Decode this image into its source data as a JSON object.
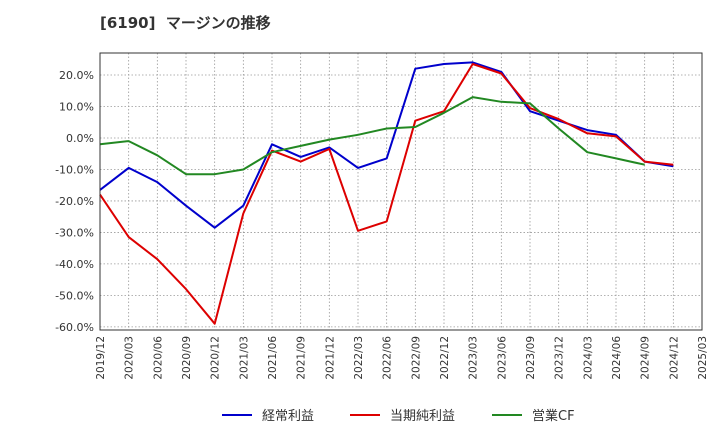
{
  "chart_data": {
    "type": "line",
    "title": "[6190]  マージンの推移",
    "xlabel": "",
    "ylabel": "",
    "ylim": [
      -61,
      27
    ],
    "yticks": [
      20,
      10,
      0,
      -10,
      -20,
      -30,
      -40,
      -50,
      -60
    ],
    "ytick_labels": [
      "20.0%",
      "10.0%",
      "0.0%",
      "-10.0%",
      "-20.0%",
      "-30.0%",
      "-40.0%",
      "-50.0%",
      "-60.0%"
    ],
    "x": [
      "2019/12",
      "2020/03",
      "2020/06",
      "2020/09",
      "2020/12",
      "2021/03",
      "2021/06",
      "2021/09",
      "2021/12",
      "2022/03",
      "2022/06",
      "2022/09",
      "2022/12",
      "2023/03",
      "2023/06",
      "2023/09",
      "2023/12",
      "2024/03",
      "2024/06",
      "2024/09",
      "2024/12",
      "2025/03"
    ],
    "grid": true,
    "legend_position": "bottom",
    "series": [
      {
        "name": "経常利益",
        "color": "#0000cc",
        "values": [
          -16.5,
          -9.5,
          -14,
          -21.5,
          -28.5,
          -21.5,
          -2,
          -6,
          -3,
          -9.5,
          -6.5,
          22,
          23.5,
          24,
          21,
          8.5,
          5.5,
          2.5,
          1,
          -7.5,
          -9,
          null
        ]
      },
      {
        "name": "当期純利益",
        "color": "#dd0000",
        "values": [
          -18,
          -31.5,
          -38.5,
          -48,
          -59,
          -24,
          -4,
          -7.5,
          -3.5,
          -29.5,
          -26.5,
          5.5,
          8.5,
          23.5,
          20.5,
          9.5,
          6,
          1.5,
          0.5,
          -7.5,
          -8.5,
          null
        ]
      },
      {
        "name": "営業CF",
        "color": "#228822",
        "values": [
          -2,
          -1,
          -5.5,
          -11.5,
          -11.5,
          -10,
          -4.5,
          -2.5,
          -0.5,
          1,
          3,
          3.5,
          8,
          13,
          11.5,
          11,
          3,
          -4.5,
          -6.5,
          -8.5,
          null,
          null
        ]
      }
    ]
  }
}
